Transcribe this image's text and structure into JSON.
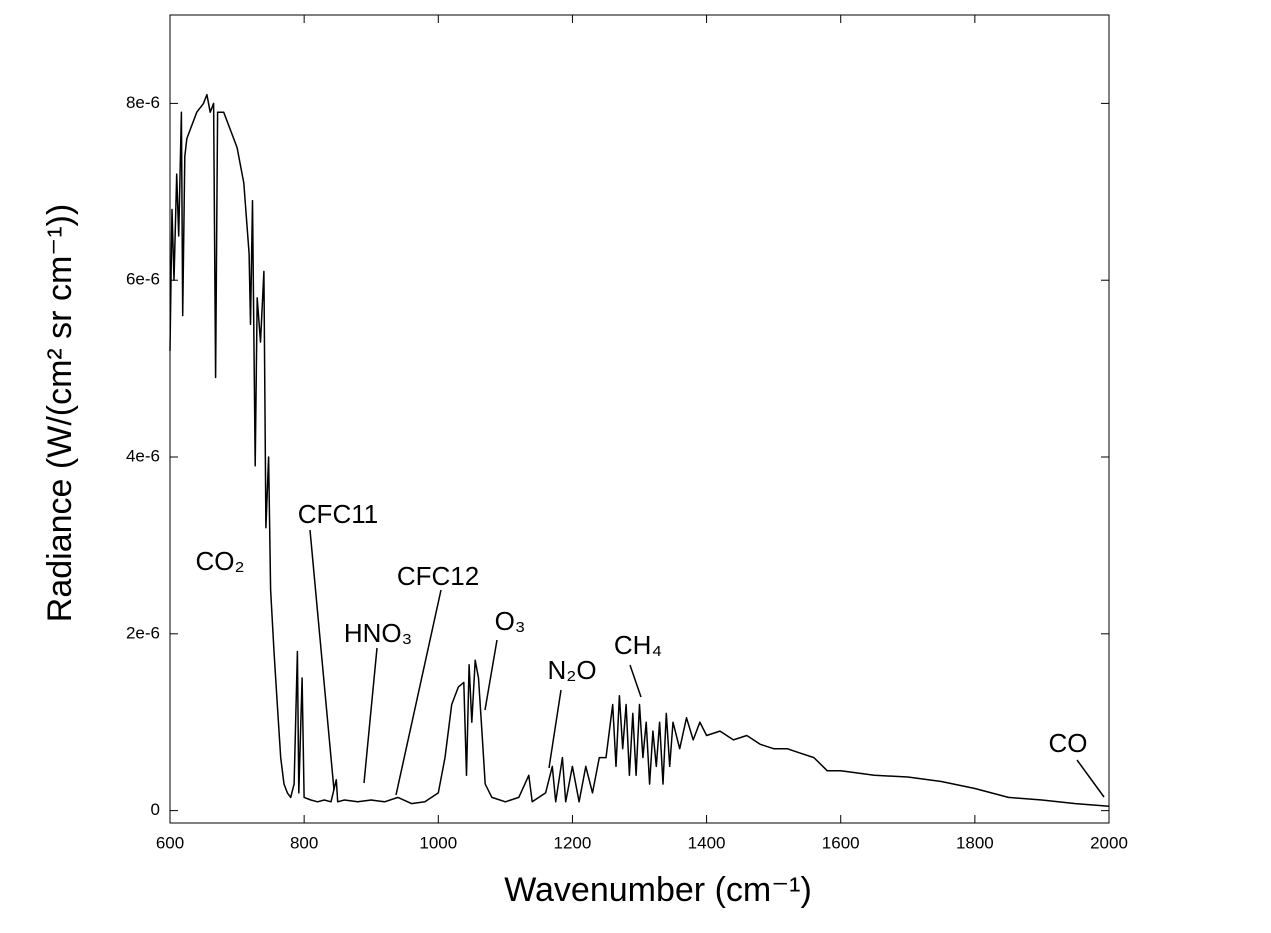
{
  "chart_data": {
    "type": "line",
    "x_label": "Wavenumber (cm⁻¹)",
    "y_label": "Radiance (W/(cm² sr cm⁻¹))",
    "xlim": [
      600,
      2000
    ],
    "ylim": [
      -1.4e-07,
      9e-06
    ],
    "xticks": [
      600,
      800,
      1000,
      1200,
      1400,
      1600,
      1800,
      2000
    ],
    "yticks": [
      0,
      {
        "value": 2e-06,
        "label": "2e-6"
      },
      {
        "value": 4e-06,
        "label": "4e-6"
      },
      {
        "value": 6e-06,
        "label": "6e-6"
      },
      {
        "value": 8e-06,
        "label": "8e-6"
      }
    ],
    "annotations": [
      "CO₂",
      "CFC11",
      "HNO₃",
      "CFC12",
      "O₃",
      "N₂O",
      "CH₄",
      "CO"
    ],
    "series": [
      {
        "color": "#000000",
        "x": [
          600,
          603,
          606,
          610,
          613,
          617,
          619,
          622,
          625,
          630,
          640,
          650,
          655,
          660,
          665,
          668,
          671,
          680,
          690,
          700,
          710,
          718,
          720,
          723,
          727,
          730,
          735,
          740,
          743,
          747,
          750,
          755,
          760,
          765,
          770,
          775,
          780,
          785,
          790,
          792,
          797,
          800,
          810,
          820,
          830,
          840,
          848,
          850,
          860,
          880,
          900,
          920,
          940,
          960,
          980,
          1000,
          1010,
          1020,
          1030,
          1038,
          1042,
          1046,
          1050,
          1055,
          1060,
          1065,
          1070,
          1080,
          1100,
          1120,
          1135,
          1140,
          1160,
          1170,
          1175,
          1185,
          1190,
          1200,
          1210,
          1220,
          1230,
          1240,
          1250,
          1260,
          1265,
          1270,
          1275,
          1280,
          1285,
          1290,
          1295,
          1300,
          1305,
          1310,
          1315,
          1320,
          1325,
          1330,
          1335,
          1340,
          1345,
          1350,
          1360,
          1370,
          1380,
          1390,
          1400,
          1420,
          1440,
          1460,
          1480,
          1500,
          1520,
          1540,
          1560,
          1580,
          1600,
          1650,
          1700,
          1750,
          1800,
          1850,
          1900,
          1950,
          2000
        ],
        "values": [
          5.2e-06,
          6.8e-06,
          6e-06,
          7.2e-06,
          6.5e-06,
          7.9e-06,
          5.6e-06,
          7.4e-06,
          7.6e-06,
          7.7e-06,
          7.9e-06,
          8e-06,
          8.1e-06,
          7.9e-06,
          8e-06,
          4.9e-06,
          7.9e-06,
          7.9e-06,
          7.7e-06,
          7.5e-06,
          7.1e-06,
          6.3e-06,
          5.5e-06,
          6.9e-06,
          3.9e-06,
          5.8e-06,
          5.3e-06,
          6.1e-06,
          3.2e-06,
          4e-06,
          2.5e-06,
          1.8e-06,
          1.2e-06,
          6e-07,
          3e-07,
          2e-07,
          1.5e-07,
          3e-07,
          1.8e-06,
          2e-07,
          1.5e-06,
          1.5e-07,
          1.2e-07,
          1e-07,
          1.2e-07,
          1e-07,
          3.5e-07,
          1e-07,
          1.2e-07,
          1e-07,
          1.2e-07,
          1e-07,
          1.5e-07,
          8e-08,
          1e-07,
          2e-07,
          6e-07,
          1.2e-06,
          1.4e-06,
          1.45e-06,
          4e-07,
          1.65e-06,
          1e-06,
          1.7e-06,
          1.5e-06,
          9e-07,
          3e-07,
          1.5e-07,
          1e-07,
          1.5e-07,
          4e-07,
          1e-07,
          2e-07,
          5e-07,
          1e-07,
          6e-07,
          1e-07,
          5e-07,
          1e-07,
          5e-07,
          2e-07,
          6e-07,
          6e-07,
          1.2e-06,
          5e-07,
          1.3e-06,
          7e-07,
          1.2e-06,
          4e-07,
          1.1e-06,
          4e-07,
          1.2e-06,
          6e-07,
          1e-06,
          3e-07,
          9e-07,
          5e-07,
          1e-06,
          3e-07,
          1.1e-06,
          5e-07,
          1e-06,
          7e-07,
          1.05e-06,
          8e-07,
          1e-06,
          8.5e-07,
          9e-07,
          8e-07,
          8.5e-07,
          7.5e-07,
          7e-07,
          7e-07,
          6.5e-07,
          6e-07,
          4.5e-07,
          4.5e-07,
          4e-07,
          3.8e-07,
          3.3e-07,
          2.5e-07,
          1.5e-07,
          1.2e-07,
          8e-08,
          5e-08
        ]
      }
    ]
  }
}
